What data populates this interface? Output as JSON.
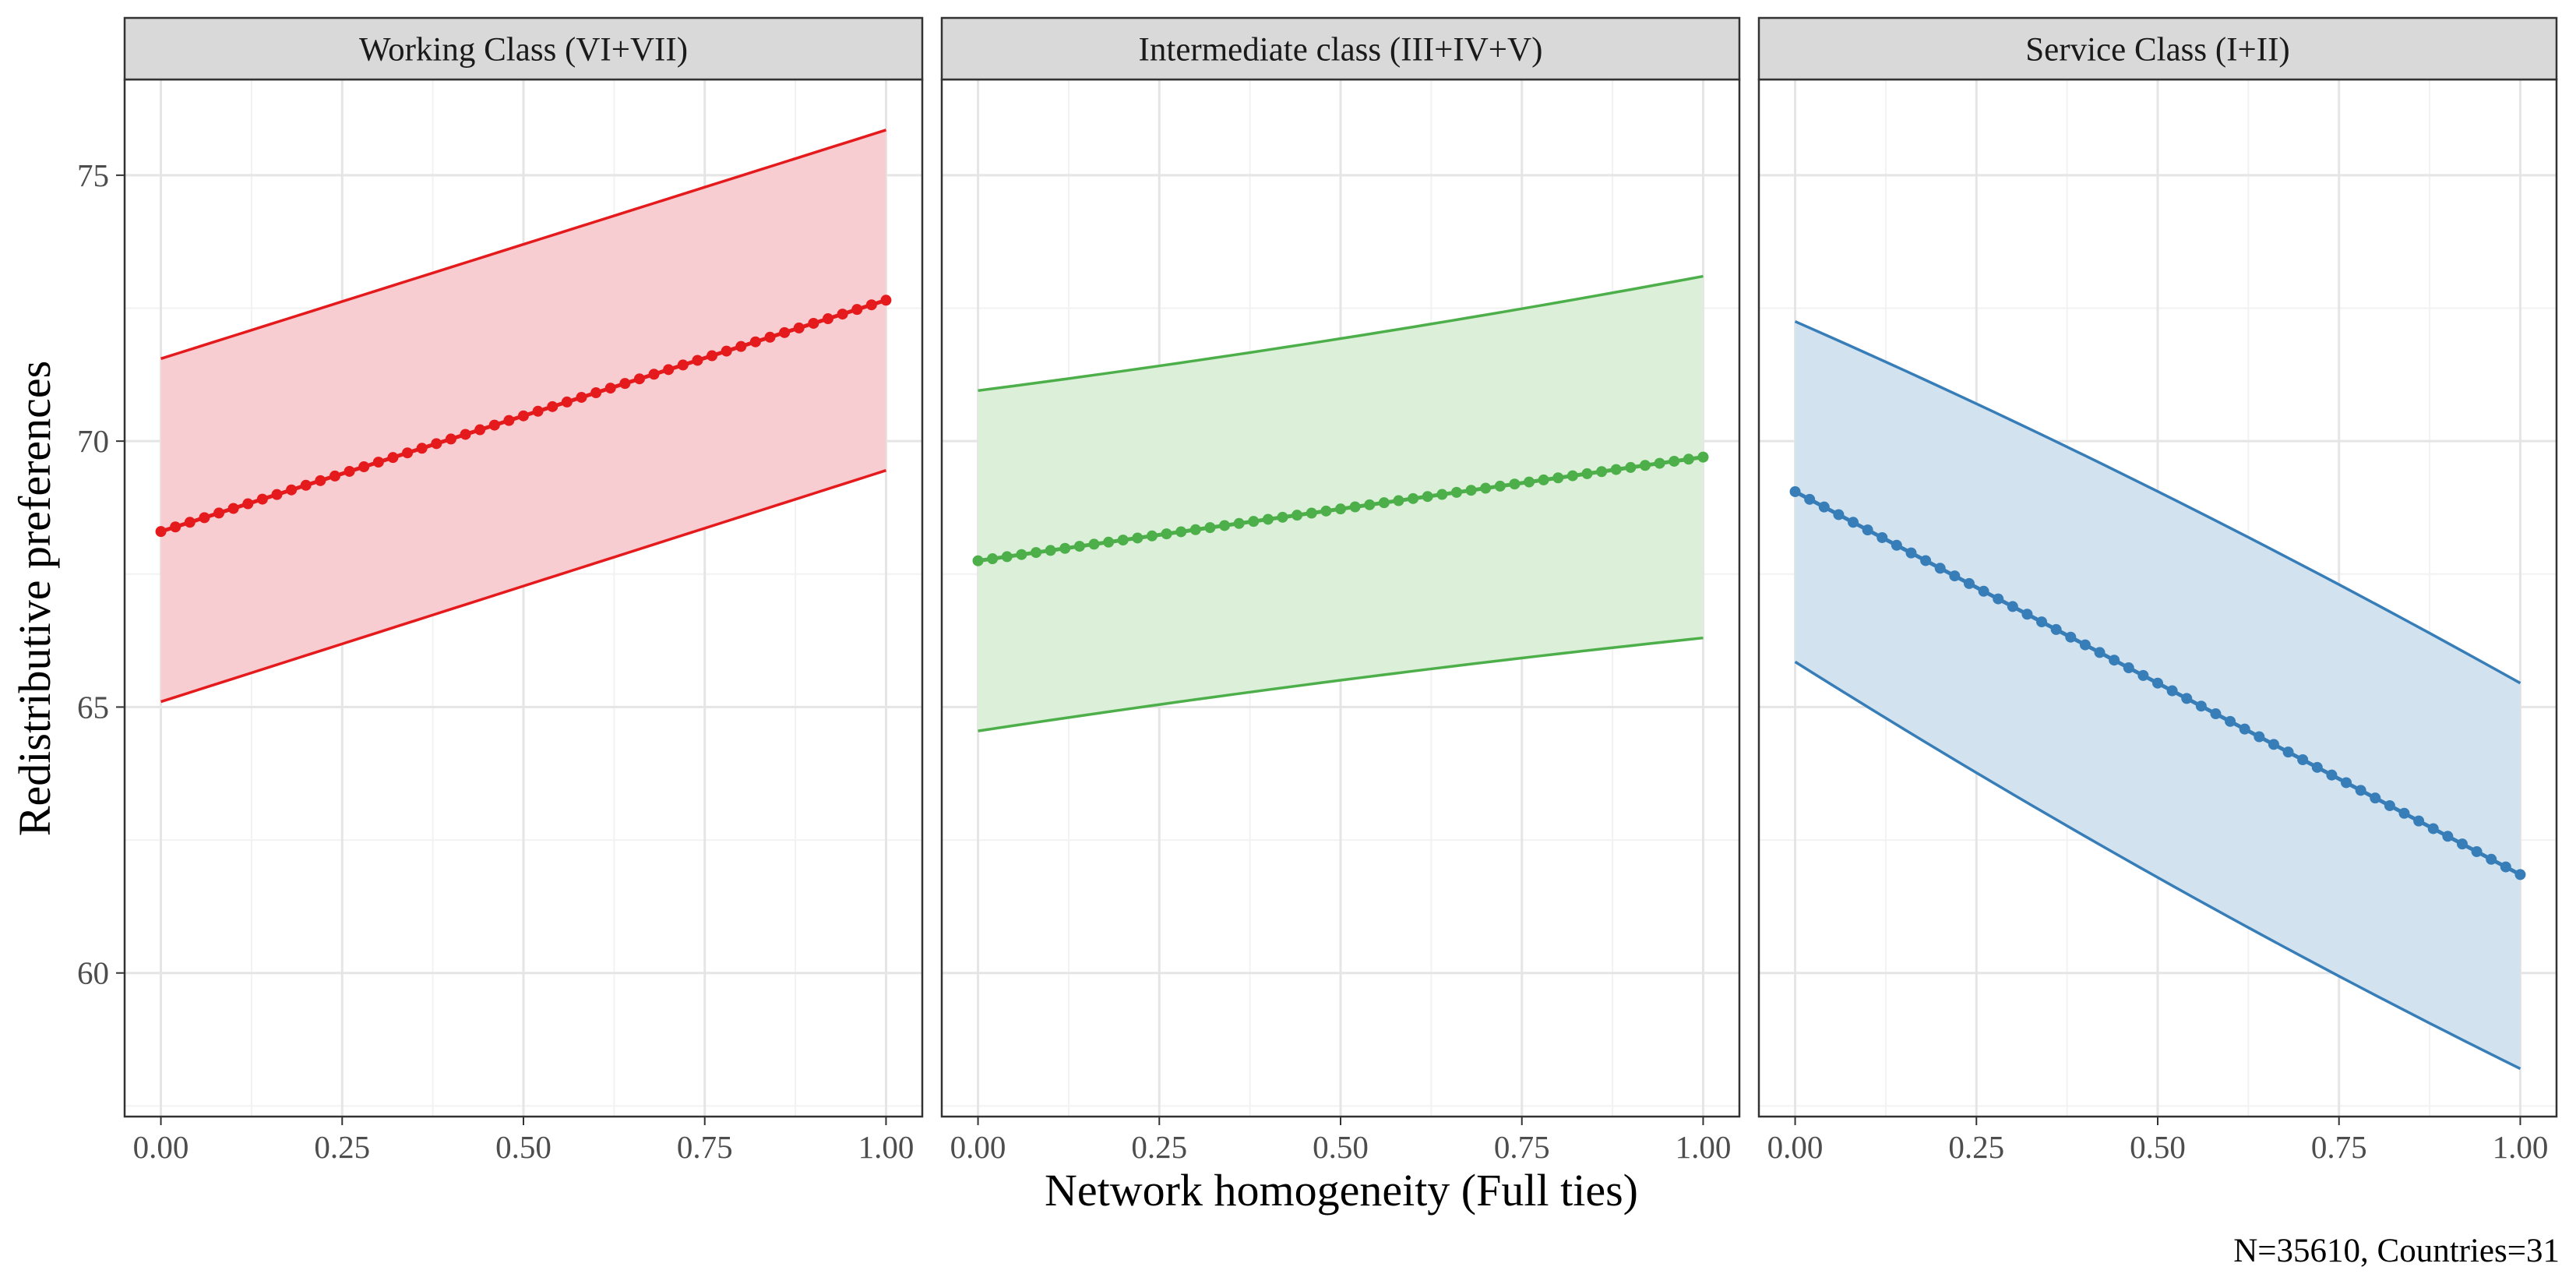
{
  "chart_data": {
    "type": "line",
    "xlabel": "Network homogeneity (Full ties)",
    "ylabel": "Redistributive preferences",
    "caption": "N=35610, Countries=31",
    "x_ticks": [
      "0.00",
      "0.25",
      "0.50",
      "0.75",
      "1.00"
    ],
    "y_ticks": [
      "60",
      "65",
      "70",
      "75"
    ],
    "xlim": [
      -0.05,
      1.05
    ],
    "ylim": [
      57.3,
      76.8
    ],
    "grid": true,
    "panels": [
      {
        "title": "Working Class (VI+VII)",
        "color": "#E41A1C",
        "fill": "#F8CDD1",
        "x": [
          0,
          1
        ],
        "estimate": [
          68.3,
          72.65
        ],
        "lower": [
          65.1,
          69.45
        ],
        "upper": [
          71.55,
          75.85
        ],
        "curvature": 0
      },
      {
        "title": "Intermediate class (III+IV+V)",
        "color": "#4DAF4A",
        "fill": "#DCEFD9",
        "x": [
          0,
          1
        ],
        "estimate": [
          67.75,
          69.7
        ],
        "lower": [
          64.55,
          66.3
        ],
        "upper": [
          70.95,
          73.1
        ],
        "curvature": 0.18
      },
      {
        "title": "Service Class (I+II)",
        "color": "#377EB8",
        "fill": "#D3E2EF",
        "x": [
          0,
          1
        ],
        "estimate": [
          69.05,
          61.85
        ],
        "lower": [
          65.85,
          58.2
        ],
        "upper": [
          72.25,
          65.45
        ],
        "curvature": 0.12
      }
    ]
  }
}
